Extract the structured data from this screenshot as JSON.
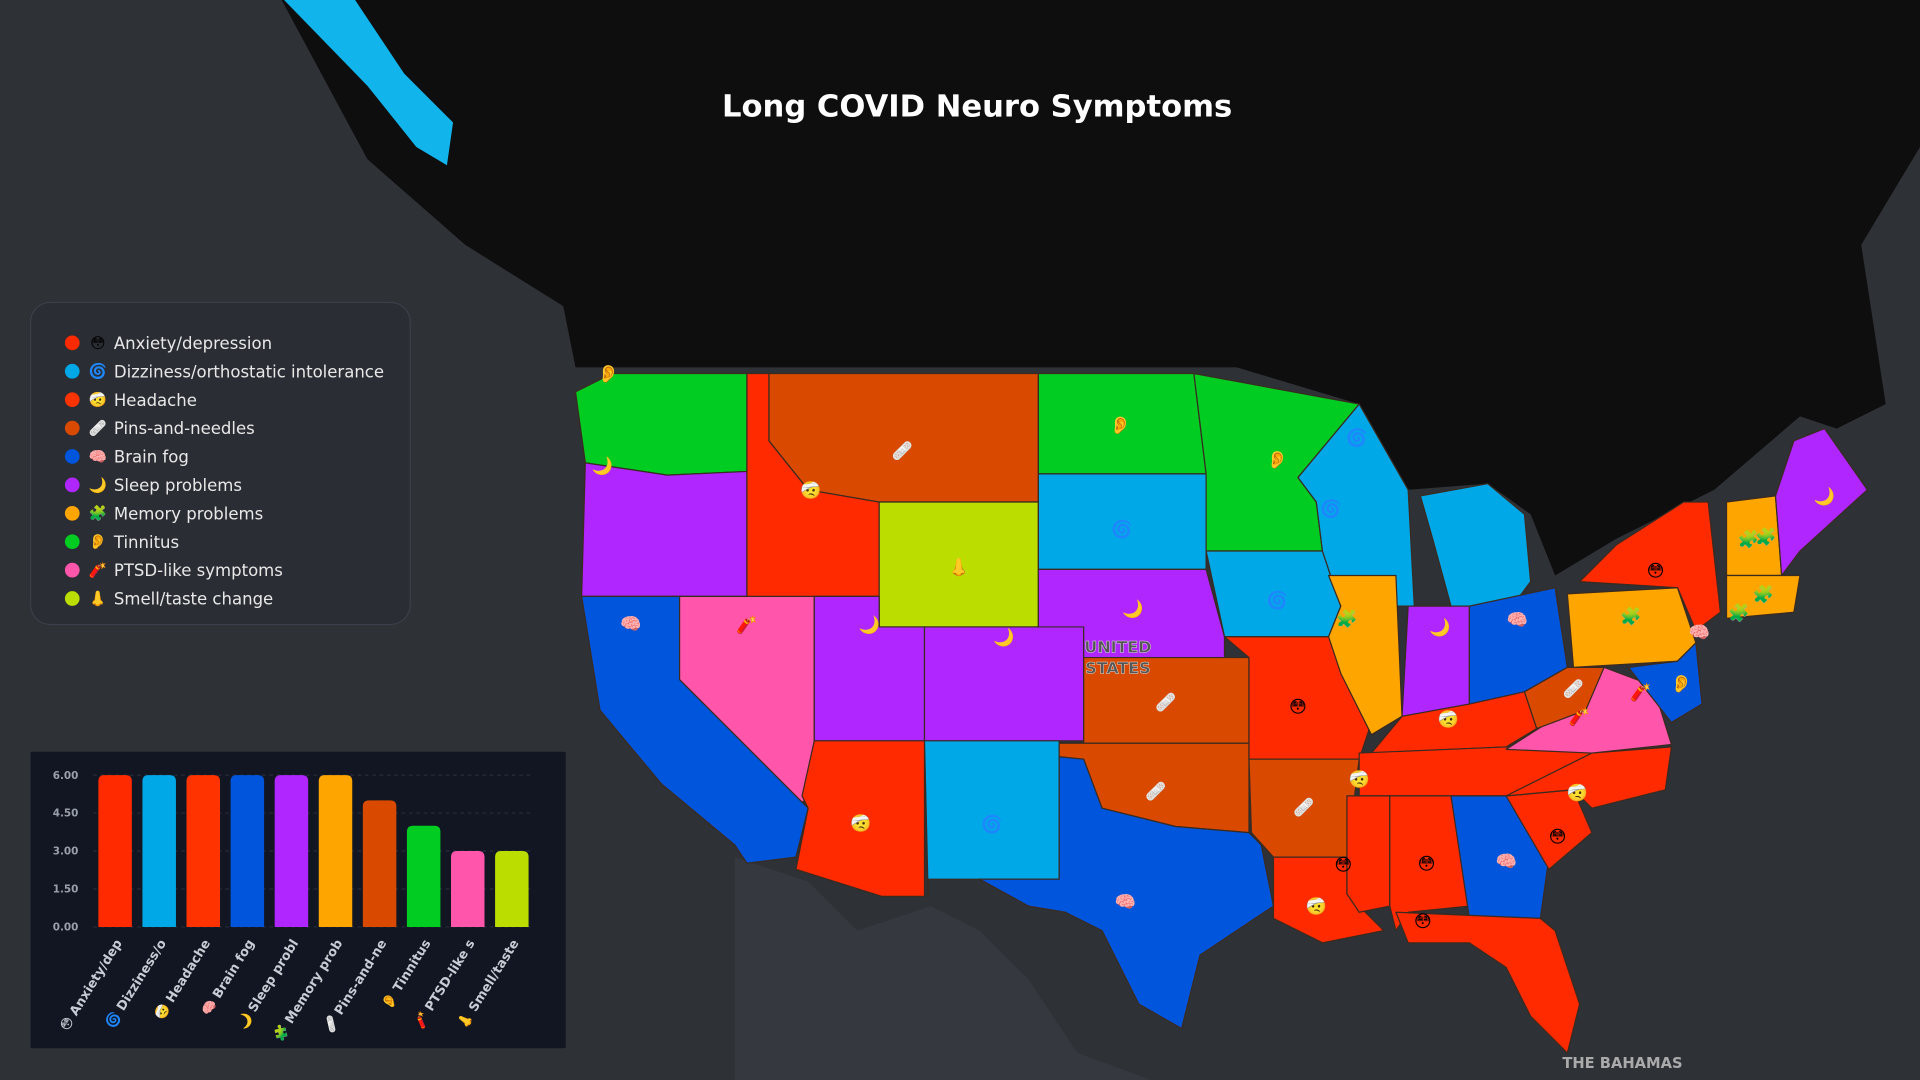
{
  "title": "Long COVID Neuro Symptoms",
  "legend": [
    {
      "emoji": "😳",
      "label": "Anxiety/depression",
      "color": "#ff2a00"
    },
    {
      "emoji": "🌀",
      "label": "Dizziness/orthostatic intolerance",
      "color": "#00a8e8"
    },
    {
      "emoji": "🤕",
      "label": "Headache",
      "color": "#ff3300"
    },
    {
      "emoji": "🩹",
      "label": "Pins-and-needles",
      "color": "#d94a00"
    },
    {
      "emoji": "🧠",
      "label": "Brain fog",
      "color": "#0055dd"
    },
    {
      "emoji": "🌙",
      "label": "Sleep problems",
      "color": "#b026ff"
    },
    {
      "emoji": "🧩",
      "label": "Memory problems",
      "color": "#ffa500"
    },
    {
      "emoji": "👂",
      "label": "Tinnitus",
      "color": "#00cc22"
    },
    {
      "emoji": "🧨",
      "label": "PTSD-like symptoms",
      "color": "#ff55aa"
    },
    {
      "emoji": "👃",
      "label": "Smell/taste change",
      "color": "#bbdd00"
    }
  ],
  "map_labels": {
    "country": [
      "UNITED",
      "STATES"
    ],
    "bahamas": "THE BAHAMAS"
  },
  "chart_data": {
    "type": "bar",
    "categories": [
      "😳 Anxiety/dep",
      "🌀 Dizziness/o",
      "🤕 Headache",
      "🧠 Brain fog",
      "🌙 Sleep probl",
      "🧩 Memory prob",
      "🩹 Pins-and-ne",
      "👂 Tinnitus",
      "🧨 PTSD-like s",
      "👃 Smell/taste"
    ],
    "values": [
      6,
      6,
      6,
      6,
      6,
      6,
      5,
      4,
      3,
      3
    ],
    "colors": [
      "#ff2a00",
      "#00a8e8",
      "#ff3300",
      "#0055dd",
      "#b026ff",
      "#ffa500",
      "#d94a00",
      "#00cc22",
      "#ff55aa",
      "#bbdd00"
    ],
    "ylim": [
      0,
      6
    ],
    "yticks": [
      {
        "value": 0,
        "label": "0.00"
      },
      {
        "value": 1.5,
        "label": "1.50"
      },
      {
        "value": 3,
        "label": "3.00"
      },
      {
        "value": 4.5,
        "label": "4.50"
      },
      {
        "value": 6,
        "label": "6.00"
      }
    ],
    "grid": true
  }
}
